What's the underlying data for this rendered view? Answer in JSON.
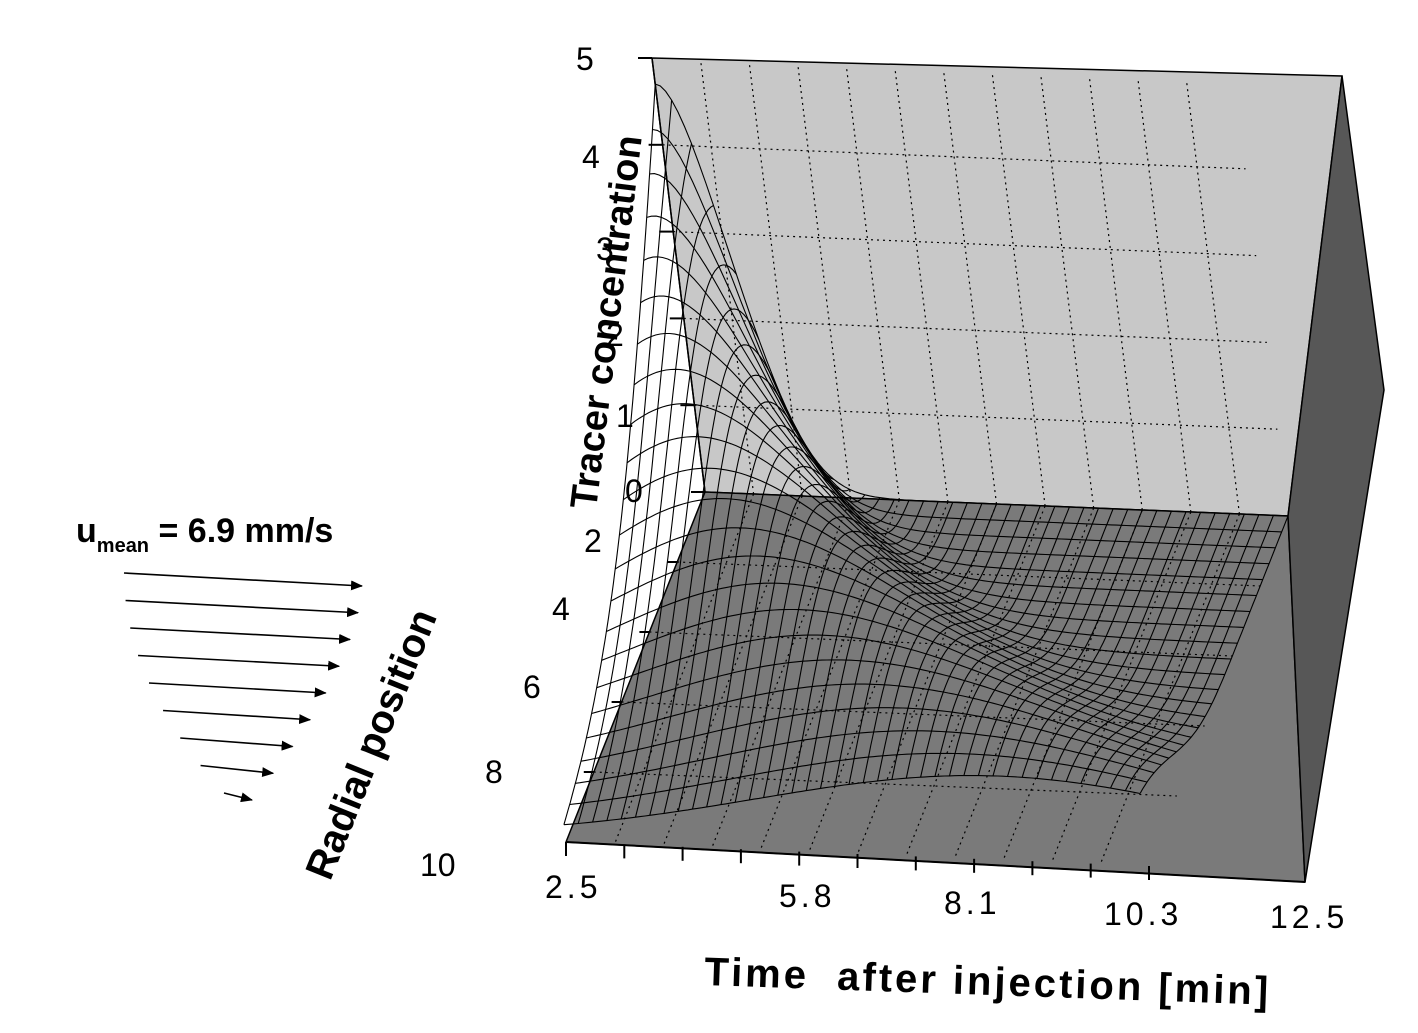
{
  "chart_data": {
    "type": "surface-3d",
    "title": "",
    "xlabel": "Time  after injection [min]",
    "ylabel": "Radial position",
    "zlabel": "Tracer concentration",
    "x_ticks": [
      "2.5",
      "5.8",
      "8.1",
      "10.3",
      "12.5"
    ],
    "x_tick_values": [
      2.5,
      5.8,
      8.1,
      10.3,
      12.5
    ],
    "y_ticks": [
      "2",
      "4",
      "6",
      "8",
      "10"
    ],
    "y_tick_values": [
      2,
      4,
      6,
      8,
      10
    ],
    "z_ticks": [
      "0",
      "1",
      "2",
      "3",
      "4",
      "5"
    ],
    "z_tick_values": [
      0,
      1,
      2,
      3,
      4,
      5
    ],
    "xlim": [
      2.5,
      12.5
    ],
    "ylim": [
      0,
      10
    ],
    "zlim": [
      0,
      5
    ],
    "grid": true,
    "surface_samples": {
      "time": [
        2.5,
        3.5,
        5.8,
        8.1,
        10.3,
        12.5
      ],
      "radial_position": [
        0,
        2,
        4,
        6,
        8,
        10
      ],
      "concentration": [
        [
          4.5,
          2.0,
          0.8,
          0.2,
          0.0,
          0.0
        ],
        [
          3.8,
          2.6,
          1.6,
          0.5,
          0.1,
          0.0
        ],
        [
          2.6,
          2.7,
          2.2,
          1.4,
          0.4,
          0.1
        ],
        [
          1.5,
          2.3,
          2.8,
          2.1,
          0.8,
          0.2
        ],
        [
          0.6,
          1.5,
          2.4,
          2.7,
          1.4,
          0.5
        ],
        [
          0.1,
          0.5,
          1.5,
          2.5,
          1.8,
          0.8
        ]
      ]
    },
    "colors": {
      "back_wall": "#c8c8c8",
      "floor": "#7a7a7a",
      "side_wall": "#575757",
      "surface_line": "#000000"
    }
  },
  "annotation": {
    "velocity_main": "u",
    "velocity_sub": "mean",
    "velocity_value": " = 6.9 mm/s",
    "arrow_count": 9
  }
}
